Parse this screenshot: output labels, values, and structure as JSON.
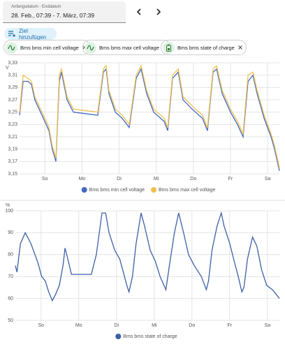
{
  "date_picker": {
    "label": "Anfangsdatum - Enddatum",
    "value": "28. Feb., 07:39 - 7. März, 07:39"
  },
  "add_target": "Ziel hinzufügen",
  "chips": [
    "Bms bms min cell voltage",
    "Bms bms max cell voltage",
    "Bms bms state of charge"
  ],
  "chart_data": [
    {
      "type": "line",
      "y_label": "V",
      "x": [
        0,
        2.3,
        5.4,
        7.7,
        9.9,
        15.4,
        19,
        21.2,
        23.5,
        25.7,
        27.1,
        30.7,
        34.8,
        50.6,
        54.2,
        56,
        57.8,
        61.9,
        66.4,
        70.9,
        75.4,
        78.6,
        82.2,
        86.7,
        93.5,
        95.8,
        98.9,
        102.6,
        105.7,
        111.6,
        118.3,
        121.5,
        125.1,
        127.4,
        131,
        136.4,
        140.9,
        144.5,
        147.7,
        150.9,
        153.6,
        158.1,
        162.6,
        164.9,
        168
      ],
      "series": [
        {
          "name": "Bms bms min cell voltage",
          "color": "#4368c0",
          "values": [
            3.245,
            3.3,
            3.3,
            3.295,
            3.27,
            3.24,
            3.22,
            3.19,
            3.17,
            3.3,
            3.315,
            3.27,
            3.25,
            3.245,
            3.315,
            3.32,
            3.28,
            3.25,
            3.24,
            3.225,
            3.305,
            3.32,
            3.28,
            3.25,
            3.235,
            3.22,
            3.305,
            3.315,
            3.27,
            3.255,
            3.24,
            3.22,
            3.315,
            3.32,
            3.28,
            3.25,
            3.23,
            3.21,
            3.3,
            3.31,
            3.28,
            3.24,
            3.21,
            3.19,
            3.155
          ]
        },
        {
          "name": "Bms bms max cell voltage",
          "color": "#f0c050",
          "values": [
            3.25,
            3.31,
            3.305,
            3.3,
            3.275,
            3.245,
            3.225,
            3.195,
            3.175,
            3.31,
            3.32,
            3.275,
            3.255,
            3.25,
            3.32,
            3.325,
            3.285,
            3.255,
            3.245,
            3.23,
            3.31,
            3.325,
            3.285,
            3.255,
            3.24,
            3.225,
            3.31,
            3.32,
            3.275,
            3.26,
            3.245,
            3.225,
            3.32,
            3.325,
            3.285,
            3.255,
            3.235,
            3.215,
            3.31,
            3.315,
            3.285,
            3.245,
            3.215,
            3.195,
            3.16
          ]
        }
      ],
      "xlim": [
        0,
        168
      ],
      "xticks": [
        {
          "value": 16.35,
          "label": "So"
        },
        {
          "value": 40.35,
          "label": "Mo"
        },
        {
          "value": 64.35,
          "label": "Di"
        },
        {
          "value": 88.35,
          "label": "Mi"
        },
        {
          "value": 112.35,
          "label": "Do"
        },
        {
          "value": 136.35,
          "label": "Fr"
        },
        {
          "value": 160.35,
          "label": "Sa"
        }
      ],
      "ylim": [
        3.15,
        3.33
      ],
      "yticks": [
        {
          "value": 3.15,
          "label": "3,15"
        },
        {
          "value": 3.17,
          "label": "3,17"
        },
        {
          "value": 3.19,
          "label": "3,19"
        },
        {
          "value": 3.21,
          "label": "3,21"
        },
        {
          "value": 3.23,
          "label": "3,23"
        },
        {
          "value": 3.25,
          "label": "3,25"
        },
        {
          "value": 3.27,
          "label": "3,27"
        },
        {
          "value": 3.29,
          "label": "3,29"
        },
        {
          "value": 3.31,
          "label": "3,31"
        },
        {
          "value": 3.33,
          "label": "3,33"
        }
      ],
      "grid": true
    },
    {
      "type": "line",
      "y_label": "%",
      "x": [
        0,
        1,
        3.2,
        6.3,
        9.9,
        14.5,
        16.7,
        19,
        21.2,
        23.5,
        25.7,
        28,
        30.3,
        31.6,
        33.4,
        35.7,
        48.3,
        51.5,
        55.1,
        57.4,
        59.6,
        63.2,
        66.4,
        68.7,
        70.9,
        72.3,
        74.5,
        76.8,
        80,
        82.2,
        85.8,
        89,
        92.1,
        95.8,
        98,
        101.2,
        103.9,
        107,
        110.2,
        113.8,
        118.3,
        121.5,
        122.9,
        125.1,
        128.3,
        131,
        132.8,
        136.4,
        139.6,
        141.8,
        144.1,
        145.4,
        147.7,
        150.9,
        153.6,
        156.7,
        159.9,
        163.5,
        165.8,
        168
      ],
      "series": [
        {
          "name": "Bms bms state of charge",
          "color": "#3d5fa8",
          "values": [
            75,
            72,
            85,
            90,
            85,
            76,
            70,
            68,
            63,
            59,
            62,
            66,
            75,
            83,
            78,
            71,
            71,
            80,
            99,
            99,
            90,
            82,
            78,
            72,
            66,
            63,
            70,
            85,
            99,
            93,
            82,
            77,
            70,
            64,
            75,
            90,
            99,
            90,
            80,
            75,
            70,
            64,
            68,
            82,
            93,
            99,
            93,
            85,
            76,
            70,
            63,
            65,
            78,
            88,
            84,
            73,
            66,
            64,
            62,
            60
          ]
        }
      ],
      "xlim": [
        0,
        168
      ],
      "xticks": [
        {
          "value": 16.35,
          "label": "So"
        },
        {
          "value": 40.35,
          "label": "Mo"
        },
        {
          "value": 64.35,
          "label": "Di"
        },
        {
          "value": 88.35,
          "label": "Mi"
        },
        {
          "value": 112.35,
          "label": "Do"
        },
        {
          "value": 136.35,
          "label": "Fr"
        },
        {
          "value": 160.35,
          "label": "Sa"
        }
      ],
      "ylim": [
        50,
        100
      ],
      "yticks": [
        50,
        60,
        70,
        80,
        90,
        100
      ],
      "grid": true
    }
  ]
}
